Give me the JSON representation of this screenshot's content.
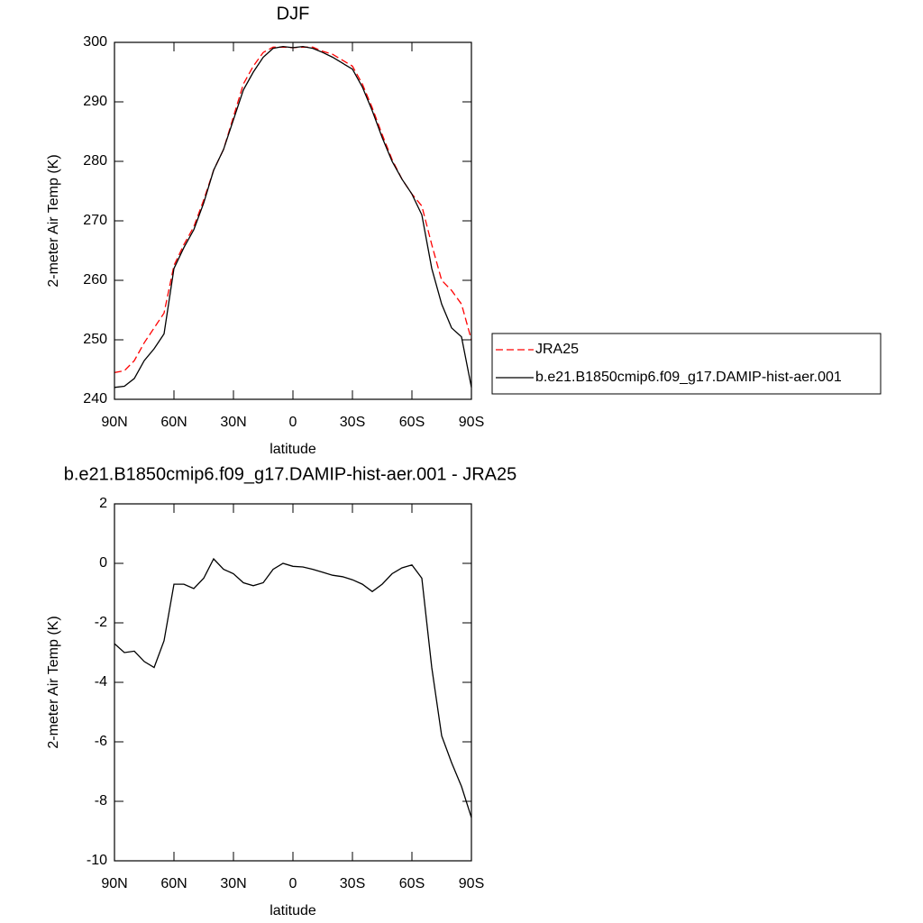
{
  "chart_data": [
    {
      "type": "line",
      "title": "DJF",
      "x_label": "latitude",
      "y_label": "2-meter Air Temp (K)",
      "x": [
        90,
        85,
        80,
        75,
        70,
        65,
        60,
        55,
        50,
        45,
        40,
        35,
        30,
        25,
        20,
        15,
        10,
        5,
        0,
        -5,
        -10,
        -15,
        -20,
        -25,
        -30,
        -35,
        -40,
        -45,
        -50,
        -55,
        -60,
        -65,
        -70,
        -75,
        -80,
        -85,
        -90
      ],
      "series": [
        {
          "name": "JRA25",
          "color": "#ff0000",
          "dashed": true,
          "values": [
            244.5,
            244.8,
            246.5,
            249.5,
            252,
            254.5,
            262.5,
            266,
            269,
            273.5,
            278.5,
            282,
            287.5,
            293,
            296,
            298.3,
            299.2,
            299.2,
            299.1,
            299.2,
            299.2,
            298.5,
            298,
            297,
            296,
            293,
            289,
            284.5,
            280.3,
            277,
            274.5,
            272.5,
            266,
            260,
            258.3,
            256,
            250
          ]
        },
        {
          "name": "b.e21.B1850cmip6.f09_g17.DAMIP-hist-aer.001",
          "color": "#000000",
          "dashed": false,
          "values": [
            242,
            242.2,
            243.5,
            246.5,
            248.5,
            251,
            262,
            265.5,
            268.5,
            273,
            278.5,
            282,
            287,
            292,
            295,
            297.5,
            299,
            299.3,
            299.1,
            299.3,
            299,
            298.3,
            297.5,
            296.5,
            295.5,
            292.5,
            288.5,
            284,
            280,
            277,
            274.5,
            271,
            262,
            256,
            252,
            250.5,
            242
          ]
        }
      ],
      "xlim": [
        90,
        -90
      ],
      "xticks": [
        {
          "value": 90,
          "label": "90N"
        },
        {
          "value": 60,
          "label": "60N"
        },
        {
          "value": 30,
          "label": "30N"
        },
        0,
        {
          "value": -30,
          "label": "30S"
        },
        {
          "value": -60,
          "label": "60S"
        },
        {
          "value": -90,
          "label": "90S"
        }
      ],
      "ylim": [
        240,
        300
      ],
      "yticks": [
        240,
        250,
        260,
        270,
        280,
        290,
        300
      ],
      "legend": "right"
    },
    {
      "type": "line",
      "title": "b.e21.B1850cmip6.f09_g17.DAMIP-hist-aer.001 - JRA25",
      "x_label": "latitude",
      "y_label": "2-meter Air Temp (K)",
      "x": [
        90,
        85,
        80,
        75,
        70,
        65,
        60,
        55,
        50,
        45,
        40,
        35,
        30,
        25,
        20,
        15,
        10,
        5,
        0,
        -5,
        -10,
        -15,
        -20,
        -25,
        -30,
        -35,
        -40,
        -45,
        -50,
        -55,
        -60,
        -65,
        -70,
        -75,
        -80,
        -85,
        -90
      ],
      "series": [
        {
          "color": "#000000",
          "dashed": false,
          "values": [
            -2.7,
            -3.0,
            -2.95,
            -3.3,
            -3.5,
            -2.6,
            -0.7,
            -0.7,
            -0.85,
            -0.5,
            0.15,
            -0.2,
            -0.35,
            -0.65,
            -0.75,
            -0.65,
            -0.2,
            0,
            -0.1,
            -0.12,
            -0.2,
            -0.3,
            -0.4,
            -0.45,
            -0.55,
            -0.7,
            -0.95,
            -0.7,
            -0.35,
            -0.15,
            -0.05,
            -0.5,
            -3.5,
            -5.8,
            -6.7,
            -7.5,
            -8.55
          ]
        }
      ],
      "xlim": [
        90,
        -90
      ],
      "xticks": [
        {
          "value": 90,
          "label": "90N"
        },
        {
          "value": 60,
          "label": "60N"
        },
        {
          "value": 30,
          "label": "30N"
        },
        0,
        {
          "value": -30,
          "label": "30S"
        },
        {
          "value": -60,
          "label": "60S"
        },
        {
          "value": -90,
          "label": "90S"
        }
      ],
      "ylim": [
        -10,
        2
      ],
      "yticks": [
        -10,
        -8,
        -6,
        -4,
        -2,
        0,
        2
      ]
    }
  ]
}
